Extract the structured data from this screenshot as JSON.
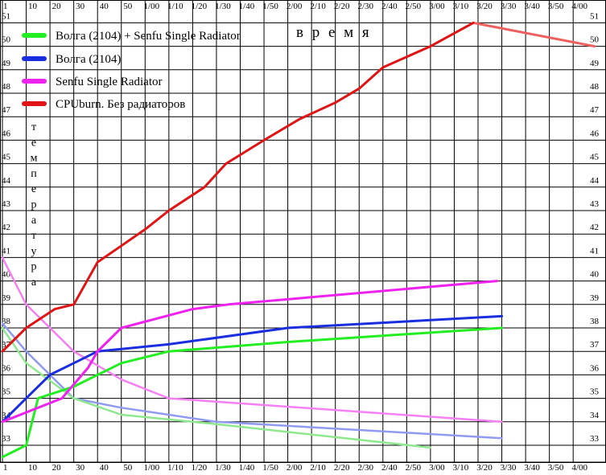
{
  "chart_data": {
    "type": "line",
    "title": "",
    "xlabel": "в р е м я",
    "ylabel": [
      "т",
      "е",
      "м",
      "п",
      "е",
      "р",
      "а",
      "т",
      "у",
      "р",
      "а"
    ],
    "x_ticks": [
      "1",
      "10",
      "20",
      "30",
      "40",
      "50",
      "1/00",
      "1/10",
      "1/20",
      "1/30",
      "1/40",
      "1/50",
      "2/00",
      "2/10",
      "2/20",
      "2/30",
      "2/40",
      "2/50",
      "3/00",
      "3/10",
      "3/20",
      "3/30",
      "3/40",
      "3/50",
      "4/00"
    ],
    "y_ticks": [
      33,
      34,
      35,
      36,
      37,
      38,
      39,
      40,
      41,
      42,
      43,
      44,
      45,
      46,
      47,
      48,
      49,
      50,
      51
    ],
    "ylim": [
      32.5,
      51
    ],
    "grid": true,
    "legend_position": "top-left",
    "series": [
      {
        "name": "Волга (2104)  + Senfu Single Radiator",
        "color": "#22ee22",
        "width": 3,
        "points": [
          [
            0,
            32.5
          ],
          [
            1,
            33
          ],
          [
            1.5,
            35
          ],
          [
            3,
            35.5
          ],
          [
            5,
            36.5
          ],
          [
            7,
            37
          ],
          [
            12,
            37.4
          ],
          [
            21,
            38
          ]
        ]
      },
      {
        "name": "Волга (2104)",
        "color": "#1a2ee0",
        "width": 3,
        "points": [
          [
            0,
            34
          ],
          [
            1,
            35
          ],
          [
            2,
            36
          ],
          [
            3,
            36.5
          ],
          [
            4,
            37
          ],
          [
            7,
            37.3
          ],
          [
            12,
            38
          ],
          [
            21,
            38.5
          ]
        ]
      },
      {
        "name": "Senfu Single Radiator",
        "color": "#ee22ee",
        "width": 3,
        "points": [
          [
            0,
            34
          ],
          [
            2.5,
            35
          ],
          [
            3.6,
            36.3
          ],
          [
            4,
            37
          ],
          [
            5,
            38
          ],
          [
            8,
            38.8
          ],
          [
            9.5,
            39
          ],
          [
            20.8,
            40
          ]
        ]
      },
      {
        "name": "CPUburn. Без радиаторов",
        "color": "#e01414",
        "width": 3,
        "points": [
          [
            0,
            37
          ],
          [
            1,
            38
          ],
          [
            2.2,
            38.8
          ],
          [
            3,
            39
          ],
          [
            4,
            40.8
          ],
          [
            5,
            41.5
          ],
          [
            6,
            42.2
          ],
          [
            7,
            43
          ],
          [
            8.5,
            44
          ],
          [
            9.4,
            45
          ],
          [
            11,
            46
          ],
          [
            12.5,
            46.9
          ],
          [
            14,
            47.6
          ],
          [
            15,
            48.2
          ],
          [
            16,
            49.1
          ],
          [
            18,
            50
          ],
          [
            19.8,
            51
          ]
        ]
      }
    ],
    "cooling_series": [
      {
        "color": "#f480f4",
        "width": 2.5,
        "points": [
          [
            0,
            41
          ],
          [
            1,
            39
          ],
          [
            3,
            37
          ],
          [
            5,
            35.8
          ],
          [
            7,
            35
          ],
          [
            21,
            34
          ]
        ]
      },
      {
        "color": "#8f9af0",
        "width": 2.5,
        "points": [
          [
            0,
            38.2
          ],
          [
            1,
            37
          ],
          [
            3,
            35
          ],
          [
            5,
            34.6
          ],
          [
            9,
            34
          ],
          [
            21,
            33.3
          ]
        ]
      },
      {
        "color": "#8fe88f",
        "width": 2.5,
        "points": [
          [
            0,
            38
          ],
          [
            1,
            36.5
          ],
          [
            3,
            35
          ],
          [
            5,
            34.3
          ],
          [
            9,
            33.9
          ],
          [
            18,
            32.9
          ]
        ]
      },
      {
        "color": "#ee6060",
        "width": 3,
        "points": [
          [
            19.8,
            51
          ],
          [
            24.9,
            50
          ]
        ]
      }
    ]
  }
}
